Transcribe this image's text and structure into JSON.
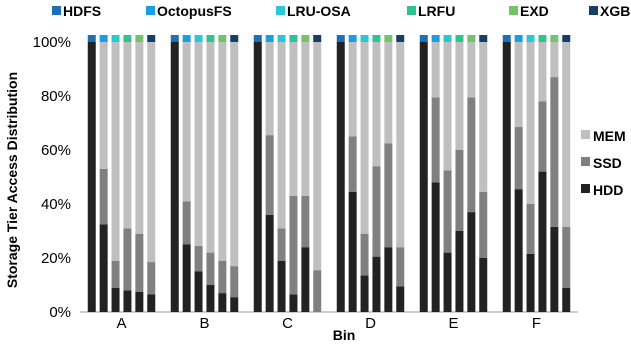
{
  "chart_data": {
    "type": "bar",
    "stacked": true,
    "xlabel": "Bin",
    "ylabel": "Storage Tier Access Distribution",
    "ylim": [
      0,
      100
    ],
    "yticks": [
      "0%",
      "20%",
      "40%",
      "60%",
      "80%",
      "100%"
    ],
    "categories": [
      "A",
      "B",
      "C",
      "D",
      "E",
      "F"
    ],
    "systems": [
      {
        "name": "HDFS",
        "color": "#1f6fb4"
      },
      {
        "name": "OctopusFS",
        "color": "#1a9ee0"
      },
      {
        "name": "LRU-OSA",
        "color": "#2bc7d2"
      },
      {
        "name": "LRFU",
        "color": "#2ec490"
      },
      {
        "name": "EXD",
        "color": "#74c26a"
      },
      {
        "name": "XGB",
        "color": "#173e64"
      }
    ],
    "tiers": [
      {
        "name": "HDD",
        "color": "#222222"
      },
      {
        "name": "SSD",
        "color": "#808080"
      },
      {
        "name": "MEM",
        "color": "#bfbfbf"
      }
    ],
    "series": [
      {
        "name": "HDD",
        "values": [
          [
            100,
            32.5,
            9,
            8,
            7.5,
            6.5
          ],
          [
            100,
            25,
            15,
            10,
            7,
            5.5
          ],
          [
            100,
            36,
            19,
            6.5,
            24,
            0
          ],
          [
            100,
            44.5,
            13.5,
            20.5,
            24,
            9.5
          ],
          [
            100,
            48,
            22,
            30,
            37,
            20
          ],
          [
            100,
            45.5,
            21.5,
            52,
            31.5,
            9
          ]
        ]
      },
      {
        "name": "SSD",
        "values": [
          [
            0,
            20.5,
            10,
            23,
            21.5,
            12
          ],
          [
            0,
            16,
            9.5,
            12,
            12,
            11.5
          ],
          [
            0,
            29.5,
            12,
            36.5,
            19,
            15.5
          ],
          [
            0,
            20.5,
            15.5,
            33.5,
            38.5,
            14.5
          ],
          [
            0,
            31.5,
            30.5,
            30,
            42.5,
            24.5
          ],
          [
            0,
            23,
            18.5,
            26,
            55.5,
            22.5
          ]
        ]
      },
      {
        "name": "MEM",
        "values": [
          [
            0,
            47,
            81,
            69,
            71,
            81.5
          ],
          [
            0,
            59,
            75.5,
            78,
            81,
            83
          ],
          [
            0,
            34.5,
            69,
            57,
            57,
            84.5
          ],
          [
            0,
            35,
            71,
            46,
            37.5,
            76
          ],
          [
            0,
            20.5,
            47.5,
            40,
            20.5,
            55.5
          ],
          [
            0,
            31.5,
            60,
            22,
            13,
            68.5
          ]
        ]
      }
    ]
  }
}
